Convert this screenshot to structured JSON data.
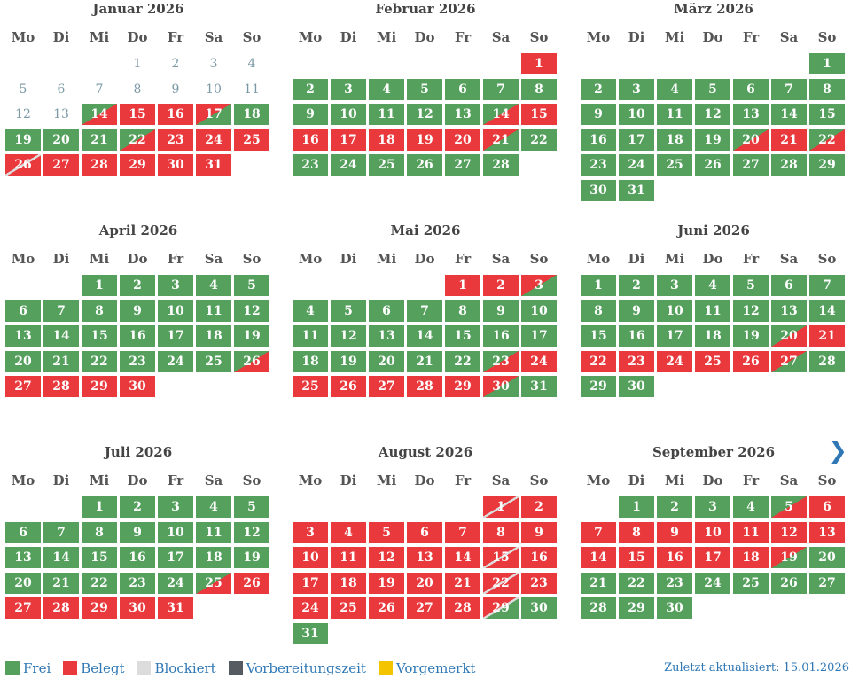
{
  "weekdays": [
    "Mo",
    "Di",
    "Mi",
    "Do",
    "Fr",
    "Sa",
    "So"
  ],
  "status_colors": {
    "free": "#56a05e",
    "booked": "#e9393d",
    "blocked": "#dcdcdc",
    "prep": "#555b61",
    "reserved": "#f4c400"
  },
  "months": [
    {
      "title": "Januar 2026",
      "start_weekday": 3,
      "days": 31,
      "status": [
        "i",
        "i",
        "i",
        "i",
        "i",
        "i",
        "i",
        "i",
        "i",
        "i",
        "i",
        "i",
        "i",
        "a",
        "b",
        "b",
        "d",
        "f",
        "f",
        "f",
        "f",
        "a",
        "b",
        "b",
        "b",
        "c",
        "b",
        "b",
        "b",
        "b",
        "b"
      ]
    },
    {
      "title": "Februar 2026",
      "start_weekday": 6,
      "days": 28,
      "status": [
        "b",
        "f",
        "f",
        "f",
        "f",
        "f",
        "f",
        "f",
        "f",
        "f",
        "f",
        "f",
        "f",
        "a",
        "b",
        "b",
        "b",
        "b",
        "b",
        "b",
        "d",
        "f",
        "f",
        "f",
        "f",
        "f",
        "f",
        "f"
      ]
    },
    {
      "title": "März 2026",
      "start_weekday": 6,
      "days": 31,
      "status": [
        "f",
        "f",
        "f",
        "f",
        "f",
        "f",
        "f",
        "f",
        "f",
        "f",
        "f",
        "f",
        "f",
        "f",
        "f",
        "f",
        "f",
        "f",
        "f",
        "a",
        "b",
        "a",
        "f",
        "f",
        "f",
        "f",
        "f",
        "f",
        "f",
        "f",
        "f"
      ]
    },
    {
      "title": "April 2026",
      "start_weekday": 2,
      "days": 30,
      "status": [
        "f",
        "f",
        "f",
        "f",
        "f",
        "f",
        "f",
        "f",
        "f",
        "f",
        "f",
        "f",
        "f",
        "f",
        "f",
        "f",
        "f",
        "f",
        "f",
        "f",
        "f",
        "f",
        "f",
        "f",
        "f",
        "a",
        "b",
        "b",
        "b",
        "b"
      ]
    },
    {
      "title": "Mai 2026",
      "start_weekday": 4,
      "days": 31,
      "status": [
        "b",
        "b",
        "d",
        "f",
        "f",
        "f",
        "f",
        "f",
        "f",
        "f",
        "f",
        "f",
        "f",
        "f",
        "f",
        "f",
        "f",
        "f",
        "f",
        "f",
        "f",
        "f",
        "a",
        "b",
        "b",
        "b",
        "b",
        "b",
        "b",
        "d",
        "f"
      ]
    },
    {
      "title": "Juni 2026",
      "start_weekday": 0,
      "days": 30,
      "status": [
        "f",
        "f",
        "f",
        "f",
        "f",
        "f",
        "f",
        "f",
        "f",
        "f",
        "f",
        "f",
        "f",
        "f",
        "f",
        "f",
        "f",
        "f",
        "f",
        "a",
        "b",
        "b",
        "b",
        "b",
        "b",
        "b",
        "d",
        "f",
        "f",
        "f"
      ]
    },
    {
      "title": "Juli 2026",
      "start_weekday": 2,
      "days": 31,
      "status": [
        "f",
        "f",
        "f",
        "f",
        "f",
        "f",
        "f",
        "f",
        "f",
        "f",
        "f",
        "f",
        "f",
        "f",
        "f",
        "f",
        "f",
        "f",
        "f",
        "f",
        "f",
        "f",
        "f",
        "f",
        "a",
        "b",
        "b",
        "b",
        "b",
        "b",
        "b"
      ]
    },
    {
      "title": "August 2026",
      "start_weekday": 5,
      "days": 31,
      "status": [
        "c",
        "b",
        "b",
        "b",
        "b",
        "b",
        "b",
        "b",
        "b",
        "b",
        "b",
        "b",
        "b",
        "b",
        "c",
        "b",
        "b",
        "b",
        "b",
        "b",
        "b",
        "c",
        "b",
        "b",
        "b",
        "b",
        "b",
        "b",
        "e",
        "f",
        "f"
      ]
    },
    {
      "title": "September 2026",
      "start_weekday": 1,
      "days": 30,
      "status": [
        "f",
        "f",
        "f",
        "f",
        "a",
        "b",
        "b",
        "b",
        "b",
        "b",
        "b",
        "b",
        "b",
        "b",
        "b",
        "b",
        "b",
        "b",
        "d",
        "f",
        "f",
        "f",
        "f",
        "f",
        "f",
        "f",
        "f",
        "f",
        "f",
        "f"
      ]
    }
  ],
  "navigation": {
    "next_icon": "chevron-right-icon",
    "next_label": "❯"
  },
  "legend": [
    {
      "label": "Frei",
      "color": "#56a05e"
    },
    {
      "label": "Belegt",
      "color": "#e9393d"
    },
    {
      "label": "Blockiert",
      "color": "#dcdcdc"
    },
    {
      "label": "Vorbereitungszeit",
      "color": "#555b61"
    },
    {
      "label": "Vorgemerkt",
      "color": "#f4c400"
    }
  ],
  "updated": "Zuletzt aktualisiert: 15.01.2026"
}
